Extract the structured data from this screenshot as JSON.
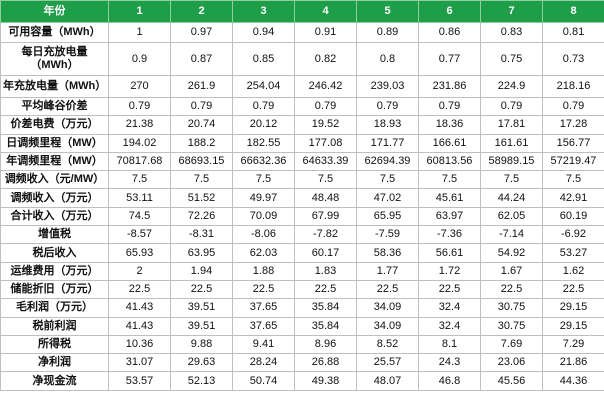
{
  "table": {
    "header": [
      "年份",
      "1",
      "2",
      "3",
      "4",
      "5",
      "6",
      "7",
      "8"
    ],
    "rows": [
      [
        "可用容量（MWh）",
        1,
        0.97,
        0.94,
        0.91,
        0.89,
        0.86,
        0.83,
        0.81
      ],
      [
        "每日充放电量（MWh）",
        0.9,
        0.87,
        0.85,
        0.82,
        0.8,
        0.77,
        0.75,
        0.73
      ],
      [
        "年充放电量（MWh）",
        270,
        261.9,
        254.04,
        246.42,
        239.03,
        231.86,
        224.9,
        218.16
      ],
      [
        "平均峰谷价差",
        0.79,
        0.79,
        0.79,
        0.79,
        0.79,
        0.79,
        0.79,
        0.79
      ],
      [
        "价差电费（万元）",
        21.38,
        20.74,
        20.12,
        19.52,
        18.93,
        18.36,
        17.81,
        17.28
      ],
      [
        "日调频里程（MW）",
        194.02,
        188.2,
        182.55,
        177.08,
        171.77,
        166.61,
        161.61,
        156.77
      ],
      [
        "年调频里程（MW）",
        70817.68,
        68693.15,
        66632.36,
        64633.39,
        62694.39,
        60813.56,
        58989.15,
        57219.47
      ],
      [
        "调频收入（元/MW）",
        7.5,
        7.5,
        7.5,
        7.5,
        7.5,
        7.5,
        7.5,
        7.5
      ],
      [
        "调频收入（万元）",
        53.11,
        51.52,
        49.97,
        48.48,
        47.02,
        45.61,
        44.24,
        42.91
      ],
      [
        "合计收入（万元）",
        74.5,
        72.26,
        70.09,
        67.99,
        65.95,
        63.97,
        62.05,
        60.19
      ],
      [
        "增值税",
        -8.57,
        -8.31,
        -8.06,
        -7.82,
        -7.59,
        -7.36,
        -7.14,
        -6.92
      ],
      [
        "税后收入",
        65.93,
        63.95,
        62.03,
        60.17,
        58.36,
        56.61,
        54.92,
        53.27
      ],
      [
        "运维费用（万元）",
        2,
        1.94,
        1.88,
        1.83,
        1.77,
        1.72,
        1.67,
        1.62
      ],
      [
        "储能折旧（万元）",
        22.5,
        22.5,
        22.5,
        22.5,
        22.5,
        22.5,
        22.5,
        22.5
      ],
      [
        "毛利润（万元）",
        41.43,
        39.51,
        37.65,
        35.84,
        34.09,
        32.4,
        30.75,
        29.15
      ],
      [
        "税前利润",
        41.43,
        39.51,
        37.65,
        35.84,
        34.09,
        32.4,
        30.75,
        29.15
      ],
      [
        "所得税",
        10.36,
        9.88,
        9.41,
        8.96,
        8.52,
        8.1,
        7.69,
        7.29
      ],
      [
        "净利润",
        31.07,
        29.63,
        28.24,
        26.88,
        25.57,
        24.3,
        23.06,
        21.86
      ],
      [
        "净现金流",
        53.57,
        52.13,
        50.74,
        49.38,
        48.07,
        46.8,
        45.56,
        44.36
      ]
    ]
  }
}
